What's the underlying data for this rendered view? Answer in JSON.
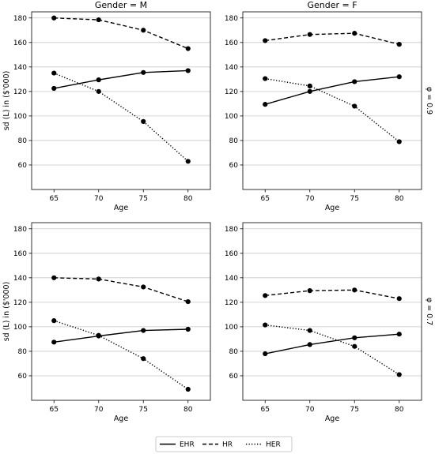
{
  "chart_data": {
    "type": "line",
    "layout": "2x2 facet grid",
    "facet_column_titles": [
      "Gender = M",
      "Gender = F"
    ],
    "facet_row_titles": [
      "φ = 0.9",
      "φ = 0.7"
    ],
    "xlabel": "Age",
    "ylabel": "sd (L) in ($'000)",
    "x": [
      65,
      70,
      75,
      80
    ],
    "x_ticks": [
      "65",
      "70",
      "75",
      "80"
    ],
    "ylim": [
      40,
      185
    ],
    "y_ticks": [
      "60",
      "80",
      "100",
      "120",
      "140",
      "160",
      "180"
    ],
    "grid": "horizontal",
    "legend_position": "bottom-center",
    "legend": [
      {
        "name": "EHR",
        "style": "solid"
      },
      {
        "name": "HR",
        "style": "dashed"
      },
      {
        "name": "HER",
        "style": "dotted"
      }
    ],
    "panels": [
      {
        "gender": "M",
        "phi": "0.9",
        "series": [
          {
            "name": "EHR",
            "values": [
              122.5,
              129.5,
              135.5,
              137
            ]
          },
          {
            "name": "HR",
            "values": [
              180,
              178.5,
              170,
              155
            ]
          },
          {
            "name": "HER",
            "values": [
              135,
              120,
              95.5,
              63
            ]
          }
        ]
      },
      {
        "gender": "F",
        "phi": "0.9",
        "series": [
          {
            "name": "EHR",
            "values": [
              109.5,
              120,
              128,
              132
            ]
          },
          {
            "name": "HR",
            "values": [
              161.5,
              166.5,
              167.5,
              158.5
            ]
          },
          {
            "name": "HER",
            "values": [
              130.5,
              124.5,
              108,
              79
            ]
          }
        ]
      },
      {
        "gender": "M",
        "phi": "0.7",
        "series": [
          {
            "name": "EHR",
            "values": [
              87.5,
              92.5,
              97,
              98
            ]
          },
          {
            "name": "HR",
            "values": [
              140,
              139,
              132.5,
              120.5
            ]
          },
          {
            "name": "HER",
            "values": [
              105,
              93,
              74,
              49
            ]
          }
        ]
      },
      {
        "gender": "F",
        "phi": "0.7",
        "series": [
          {
            "name": "EHR",
            "values": [
              78,
              85.5,
              91,
              94
            ]
          },
          {
            "name": "HR",
            "values": [
              125.5,
              129.5,
              130,
              123
            ]
          },
          {
            "name": "HER",
            "values": [
              101.5,
              97,
              84,
              61
            ]
          }
        ]
      }
    ]
  }
}
